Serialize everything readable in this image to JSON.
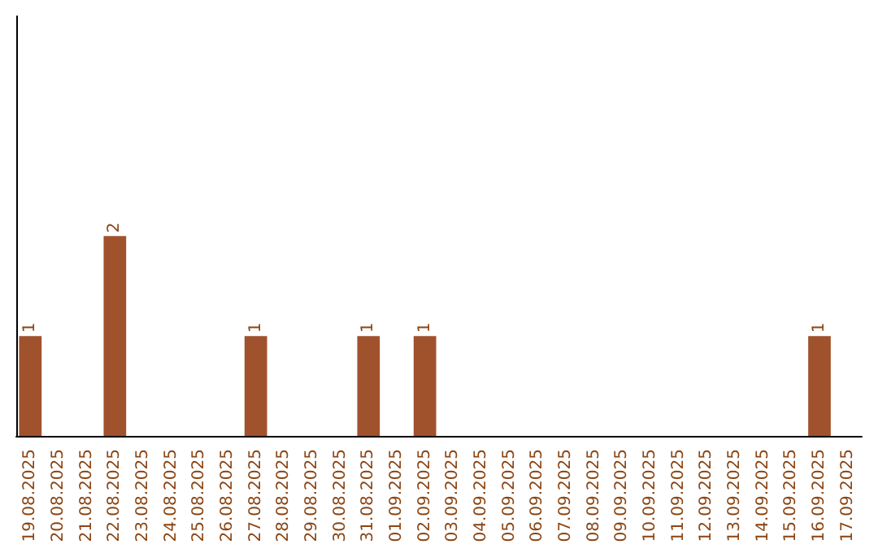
{
  "chart_data": {
    "type": "bar",
    "categories": [
      "19.08.2025",
      "20.08.2025",
      "21.08.2025",
      "22.08.2025",
      "23.08.2025",
      "24.08.2025",
      "25.08.2025",
      "26.08.2025",
      "27.08.2025",
      "28.08.2025",
      "29.08.2025",
      "30.08.2025",
      "31.08.2025",
      "01.09.2025",
      "02.09.2025",
      "03.09.2025",
      "04.09.2025",
      "05.09.2025",
      "06.09.2025",
      "07.09.2025",
      "08.09.2025",
      "09.09.2025",
      "10.09.2025",
      "11.09.2025",
      "12.09.2025",
      "13.09.2025",
      "14.09.2025",
      "15.09.2025",
      "16.09.2025",
      "17.09.2025"
    ],
    "values": [
      1,
      0,
      0,
      2,
      0,
      0,
      0,
      0,
      1,
      0,
      0,
      0,
      1,
      0,
      1,
      0,
      0,
      0,
      0,
      0,
      0,
      0,
      0,
      0,
      0,
      0,
      0,
      0,
      1,
      0
    ],
    "value_labels": [
      "1",
      null,
      null,
      "2",
      null,
      null,
      null,
      null,
      "1",
      null,
      null,
      null,
      "1",
      null,
      "1",
      null,
      null,
      null,
      null,
      null,
      null,
      null,
      null,
      null,
      null,
      null,
      null,
      null,
      "1",
      null
    ],
    "color": "#a0522d",
    "ylim": [
      0,
      4.2
    ],
    "tick_labels": "x",
    "grid": false
  }
}
